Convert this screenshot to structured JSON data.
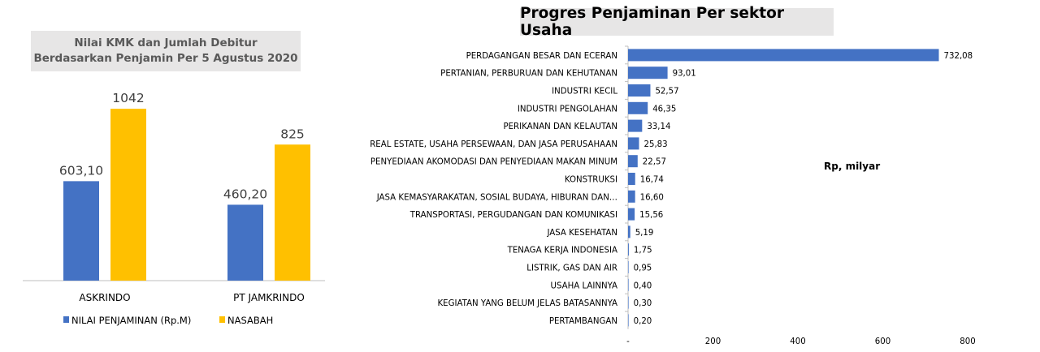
{
  "colors": {
    "blue": "#4472c4",
    "gold": "#ffc000",
    "title_bg": "#e7e6e6",
    "axis": "#bfbfbf",
    "text": "#404040"
  },
  "left_chart": {
    "title_line1": "Nilai KMK dan Jumlah Debitur",
    "title_line2": "Berdasarkan Penjamin Per 5 Agustus 2020"
  },
  "right_chart": {
    "title": "Progres Penjaminan Per sektor Usaha",
    "annotation": "Rp, milyar"
  },
  "chart_data": [
    {
      "type": "bar",
      "title": "Nilai KMK dan Jumlah Debitur Berdasarkan Penjamin Per 5 Agustus 2020",
      "categories": [
        "ASKRINDO",
        "PT JAMKRINDO"
      ],
      "series": [
        {
          "name": "NILAI PENJAMINAN (Rp.M)",
          "values": [
            603.1,
            460.2
          ],
          "labels": [
            "603,10",
            "460,20"
          ],
          "color": "#4472c4"
        },
        {
          "name": "NASABAH",
          "values": [
            1042,
            825
          ],
          "labels": [
            "1042",
            "825"
          ],
          "color": "#ffc000"
        }
      ],
      "ylim": [
        0,
        1200
      ],
      "legend": "bottom",
      "grid": false
    },
    {
      "type": "bar",
      "orientation": "horizontal",
      "title": "Progres Penjaminan Per sektor Usaha",
      "annotation": "Rp, milyar",
      "categories": [
        "PERDAGANGAN BESAR DAN ECERAN",
        "PERTANIAN, PERBURUAN DAN KEHUTANAN",
        "INDUSTRI KECIL",
        "INDUSTRI PENGOLAHAN",
        "PERIKANAN DAN KELAUTAN",
        "REAL ESTATE, USAHA PERSEWAAN, DAN JASA PERUSAHAAN",
        "PENYEDIAAN AKOMODASI DAN PENYEDIAAN MAKAN MINUM",
        "KONSTRUKSI",
        "JASA KEMASYARAKATAN, SOSIAL BUDAYA, HIBURAN DAN…",
        "TRANSPORTASI, PERGUDANGAN DAN KOMUNIKASI",
        "JASA KESEHATAN",
        "TENAGA KERJA INDONESIA",
        "LISTRIK, GAS DAN AIR",
        "USAHA LAINNYA",
        "KEGIATAN YANG BELUM JELAS BATASANNYA",
        "PERTAMBANGAN"
      ],
      "values": [
        732.08,
        93.01,
        52.57,
        46.35,
        33.14,
        25.83,
        22.57,
        16.74,
        16.6,
        15.56,
        5.19,
        1.75,
        0.95,
        0.4,
        0.3,
        0.2
      ],
      "value_labels": [
        "732,08",
        "93,01",
        "52,57",
        "46,35",
        "33,14",
        "25,83",
        "22,57",
        "16,74",
        "16,60",
        "15,56",
        "5,19",
        "1,75",
        "0,95",
        "0,40",
        "0,30",
        "0,20"
      ],
      "xlim": [
        0,
        800
      ],
      "xticks": [
        "-",
        "200",
        "400",
        "600",
        "800"
      ],
      "color": "#4472c4",
      "grid": false
    }
  ]
}
